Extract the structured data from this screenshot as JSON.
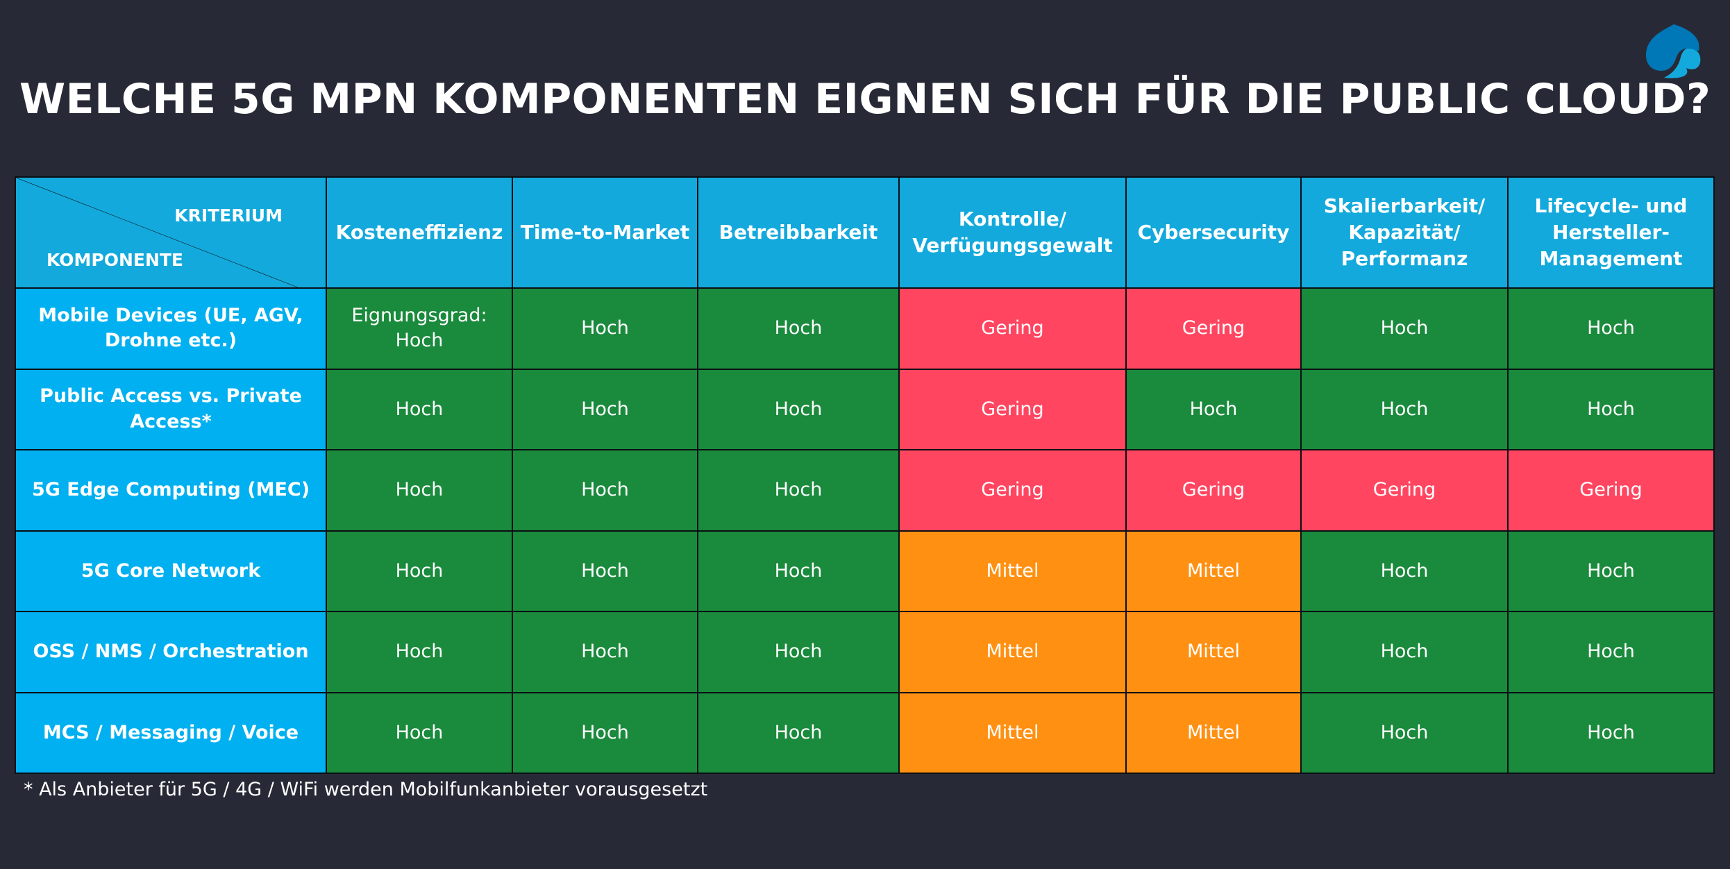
{
  "title": "WELCHE 5G MPN KOMPONENTEN EIGNEN SICH FÜR DIE PUBLIC CLOUD?",
  "logo": {
    "icon": "spade-logo-icon",
    "colors": [
      "#0077b6",
      "#13a9dc"
    ]
  },
  "colors": {
    "background": "#272a36",
    "header": "#13a9dc",
    "component": "#00b0f0",
    "Hoch": "#1a8a3c",
    "Gering": "#ff4560",
    "Mittel": "#ff9012"
  },
  "table": {
    "corner": {
      "top": "KRITERIUM",
      "bottom": "KOMPONENTE"
    },
    "columns": [
      "Kosteneffizienz",
      "Time-to-Market",
      "Betreibbarkeit",
      "Kontrolle/ Verfügungsgewalt",
      "Cybersecurity",
      "Skalierbarkeit/ Kapazität/ Performanz",
      "Lifecycle- und Hersteller-Management"
    ],
    "rows": [
      {
        "component": "Mobile Devices (UE, AGV, Drohne etc.)",
        "values": [
          "Eignungsgrad: Hoch",
          "Hoch",
          "Hoch",
          "Gering",
          "Gering",
          "Hoch",
          "Hoch"
        ]
      },
      {
        "component": "Public Access vs. Private Access*",
        "values": [
          "Hoch",
          "Hoch",
          "Hoch",
          "Gering",
          "Hoch",
          "Hoch",
          "Hoch"
        ]
      },
      {
        "component": "5G Edge Computing (MEC)",
        "values": [
          "Hoch",
          "Hoch",
          "Hoch",
          "Gering",
          "Gering",
          "Gering",
          "Gering"
        ]
      },
      {
        "component": "5G Core Network",
        "values": [
          "Hoch",
          "Hoch",
          "Hoch",
          "Mittel",
          "Mittel",
          "Hoch",
          "Hoch"
        ]
      },
      {
        "component": "OSS / NMS / Orchestration",
        "values": [
          "Hoch",
          "Hoch",
          "Hoch",
          "Mittel",
          "Mittel",
          "Hoch",
          "Hoch"
        ]
      },
      {
        "component": "MCS / Messaging / Voice",
        "values": [
          "Hoch",
          "Hoch",
          "Hoch",
          "Mittel",
          "Mittel",
          "Hoch",
          "Hoch"
        ]
      }
    ]
  },
  "footnote": "* Als Anbieter für 5G / 4G / WiFi werden Mobilfunkanbieter vorausgesetzt"
}
